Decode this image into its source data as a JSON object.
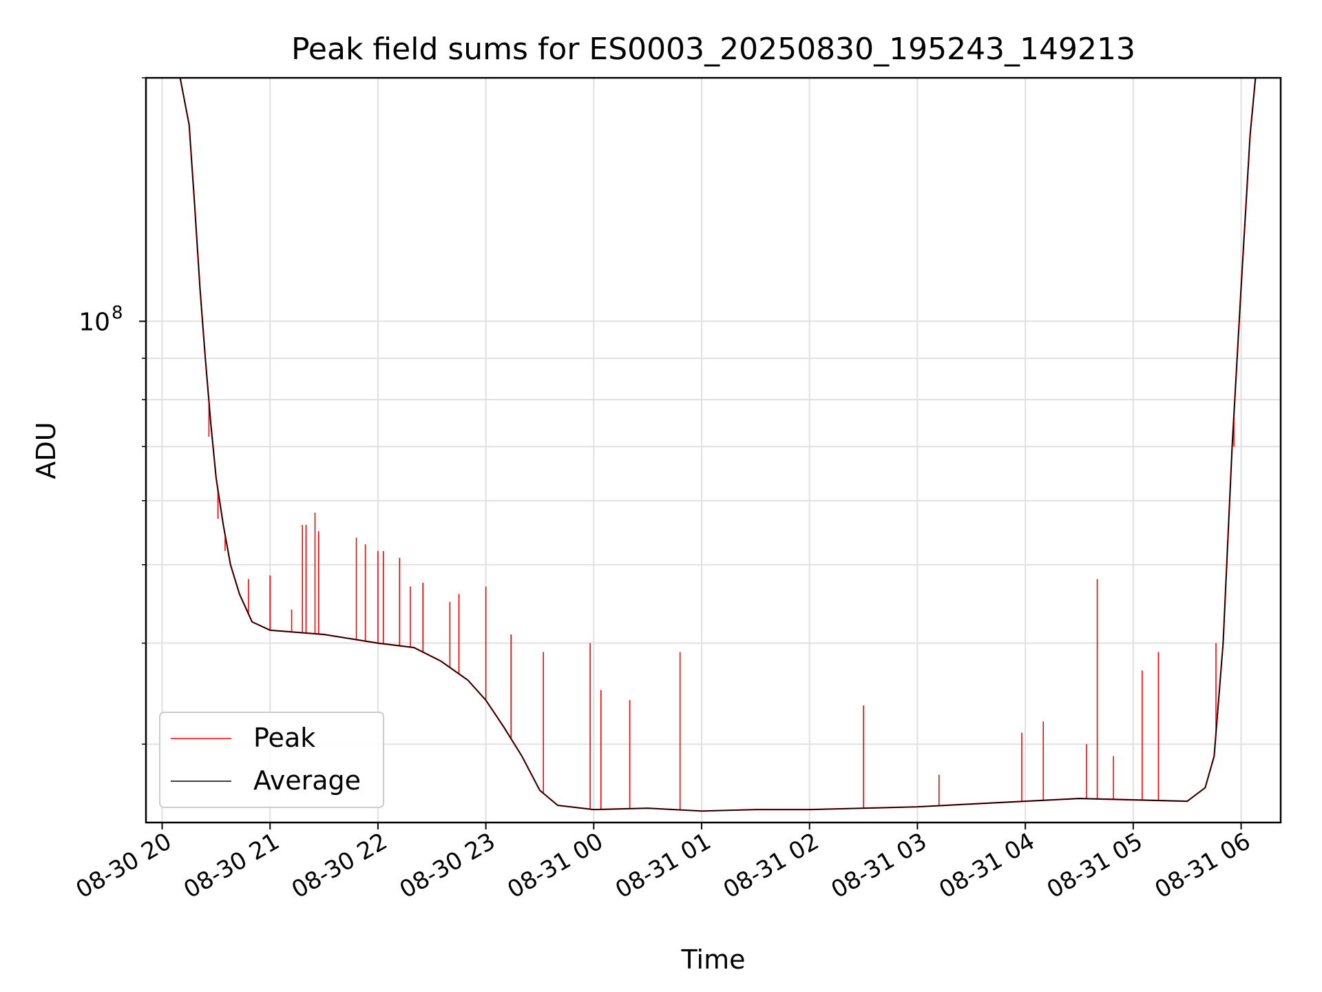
{
  "chart_data": {
    "type": "line",
    "title": "Peak field sums for ES0003_20250830_195243_149213",
    "xlabel": "Time",
    "ylabel": "ADU",
    "yscale": "log",
    "ylim": [
      24000000,
      200000000
    ],
    "yticks": [
      {
        "value": 100000000,
        "base": "10",
        "exp": "8"
      }
    ],
    "xlim": [
      "2025-08-30 19:51",
      "2025-08-31 06:22"
    ],
    "xticks": [
      {
        "t": "2025-08-30 20:00",
        "label": "08-30 20"
      },
      {
        "t": "2025-08-30 21:00",
        "label": "08-30 21"
      },
      {
        "t": "2025-08-30 22:00",
        "label": "08-30 22"
      },
      {
        "t": "2025-08-30 23:00",
        "label": "08-30 23"
      },
      {
        "t": "2025-08-31 00:00",
        "label": "08-31 00"
      },
      {
        "t": "2025-08-31 01:00",
        "label": "08-31 01"
      },
      {
        "t": "2025-08-31 02:00",
        "label": "08-31 02"
      },
      {
        "t": "2025-08-31 03:00",
        "label": "08-31 03"
      },
      {
        "t": "2025-08-31 04:00",
        "label": "08-31 04"
      },
      {
        "t": "2025-08-31 05:00",
        "label": "08-31 05"
      },
      {
        "t": "2025-08-31 06:00",
        "label": "08-31 06"
      }
    ],
    "grid": true,
    "legend_position": "lower-left",
    "series": [
      {
        "name": "Average",
        "color": "#000000",
        "points": [
          [
            "2025-08-30 20:10",
            200000000
          ],
          [
            "2025-08-30 20:15",
            175000000
          ],
          [
            "2025-08-30 20:18",
            140000000
          ],
          [
            "2025-08-30 20:21",
            110000000
          ],
          [
            "2025-08-30 20:24",
            90000000
          ],
          [
            "2025-08-30 20:27",
            75000000
          ],
          [
            "2025-08-30 20:30",
            64000000
          ],
          [
            "2025-08-30 20:34",
            56000000
          ],
          [
            "2025-08-30 20:38",
            50000000
          ],
          [
            "2025-08-30 20:43",
            46000000
          ],
          [
            "2025-08-30 20:50",
            42500000
          ],
          [
            "2025-08-30 21:00",
            41500000
          ],
          [
            "2025-08-30 21:30",
            41000000
          ],
          [
            "2025-08-30 22:00",
            40000000
          ],
          [
            "2025-08-30 22:20",
            39500000
          ],
          [
            "2025-08-30 22:35",
            38000000
          ],
          [
            "2025-08-30 22:50",
            36000000
          ],
          [
            "2025-08-30 23:00",
            34000000
          ],
          [
            "2025-08-30 23:10",
            31500000
          ],
          [
            "2025-08-30 23:20",
            29000000
          ],
          [
            "2025-08-30 23:30",
            26300000
          ],
          [
            "2025-08-30 23:40",
            25200000
          ],
          [
            "2025-08-31 00:00",
            24900000
          ],
          [
            "2025-08-31 00:30",
            25000000
          ],
          [
            "2025-08-31 01:00",
            24800000
          ],
          [
            "2025-08-31 01:30",
            24900000
          ],
          [
            "2025-08-31 02:00",
            24900000
          ],
          [
            "2025-08-31 02:30",
            25000000
          ],
          [
            "2025-08-31 03:00",
            25100000
          ],
          [
            "2025-08-31 03:30",
            25300000
          ],
          [
            "2025-08-31 04:00",
            25500000
          ],
          [
            "2025-08-31 04:30",
            25700000
          ],
          [
            "2025-08-31 05:00",
            25600000
          ],
          [
            "2025-08-31 05:30",
            25500000
          ],
          [
            "2025-08-31 05:40",
            26500000
          ],
          [
            "2025-08-31 05:45",
            29000000
          ],
          [
            "2025-08-31 05:50",
            40000000
          ],
          [
            "2025-08-31 05:55",
            70000000
          ],
          [
            "2025-08-31 06:00",
            110000000
          ],
          [
            "2025-08-31 06:05",
            170000000
          ],
          [
            "2025-08-31 06:08",
            200000000
          ]
        ]
      },
      {
        "name": "Peak",
        "color": "#ff0000",
        "spikes": [
          [
            "2025-08-30 20:26",
            72000000
          ],
          [
            "2025-08-30 20:31",
            57000000
          ],
          [
            "2025-08-30 20:35",
            52000000
          ],
          [
            "2025-08-30 20:48",
            48000000
          ],
          [
            "2025-08-30 21:00",
            48500000
          ],
          [
            "2025-08-30 21:12",
            44000000
          ],
          [
            "2025-08-30 21:18",
            56000000
          ],
          [
            "2025-08-30 21:20",
            56000000
          ],
          [
            "2025-08-30 21:25",
            58000000
          ],
          [
            "2025-08-30 21:27",
            55000000
          ],
          [
            "2025-08-30 21:48",
            54000000
          ],
          [
            "2025-08-30 21:53",
            53000000
          ],
          [
            "2025-08-30 22:00",
            52000000
          ],
          [
            "2025-08-30 22:03",
            52000000
          ],
          [
            "2025-08-30 22:12",
            51000000
          ],
          [
            "2025-08-30 22:18",
            47000000
          ],
          [
            "2025-08-30 22:25",
            47500000
          ],
          [
            "2025-08-30 22:40",
            45000000
          ],
          [
            "2025-08-30 22:45",
            46000000
          ],
          [
            "2025-08-30 23:00",
            47000000
          ],
          [
            "2025-08-30 23:14",
            41000000
          ],
          [
            "2025-08-30 23:32",
            39000000
          ],
          [
            "2025-08-30 23:58",
            40000000
          ],
          [
            "2025-08-31 00:04",
            35000000
          ],
          [
            "2025-08-31 00:20",
            34000000
          ],
          [
            "2025-08-31 00:48",
            39000000
          ],
          [
            "2025-08-31 02:30",
            33500000
          ],
          [
            "2025-08-31 03:12",
            27500000
          ],
          [
            "2025-08-31 03:58",
            31000000
          ],
          [
            "2025-08-31 04:10",
            32000000
          ],
          [
            "2025-08-31 04:34",
            30000000
          ],
          [
            "2025-08-31 04:40",
            48000000
          ],
          [
            "2025-08-31 04:49",
            29000000
          ],
          [
            "2025-08-31 05:05",
            37000000
          ],
          [
            "2025-08-31 05:14",
            39000000
          ],
          [
            "2025-08-31 05:46",
            40000000
          ],
          [
            "2025-08-31 05:56",
            70000000
          ]
        ]
      }
    ]
  }
}
